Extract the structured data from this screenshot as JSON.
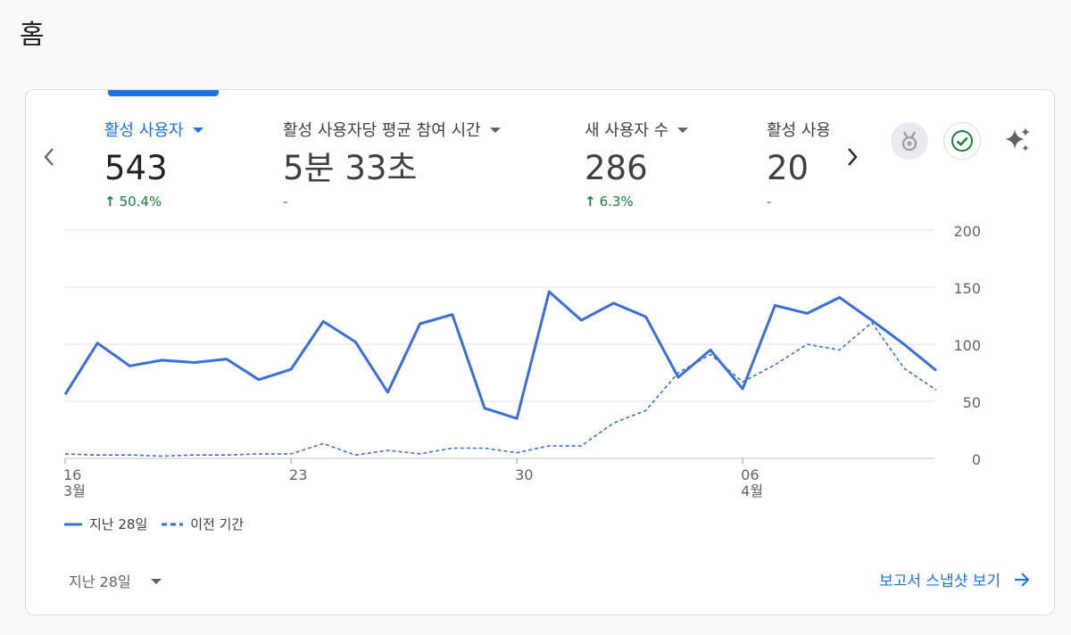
{
  "page": {
    "title": "홈"
  },
  "metrics": [
    {
      "label": "활성 사용자",
      "value": "543",
      "change": "50.4%",
      "trend": "up",
      "active": true
    },
    {
      "label": "활성 사용자당 평균 참여 시간",
      "value": "5분 33초",
      "change": "-",
      "trend": "none",
      "active": false
    },
    {
      "label": "새 사용자 수",
      "value": "286",
      "change": "6.3%",
      "trend": "up",
      "active": false
    },
    {
      "label": "활성 사용자",
      "value": "20",
      "change": "-",
      "trend": "none",
      "active": false
    }
  ],
  "icons": {
    "prev": "chevron-left-icon",
    "next": "chevron-right-icon",
    "badge": "medal-icon",
    "check": "check-circle-icon",
    "spark": "sparkle-icon"
  },
  "colors": {
    "accent": "#1a73e8",
    "line": "#3b6fd8",
    "positive": "#188038"
  },
  "chart_data": {
    "type": "line",
    "x_ticks": [
      {
        "index": 0,
        "label": "16",
        "sublabel": "3월"
      },
      {
        "index": 7,
        "label": "23",
        "sublabel": ""
      },
      {
        "index": 14,
        "label": "30",
        "sublabel": ""
      },
      {
        "index": 21,
        "label": "06",
        "sublabel": "4월"
      }
    ],
    "y_ticks": [
      0,
      50,
      100,
      150,
      200
    ],
    "ylim": [
      0,
      200
    ],
    "series": [
      {
        "name": "지난 28일",
        "style": "solid",
        "values": [
          56,
          101,
          81,
          86,
          84,
          87,
          69,
          78,
          120,
          102,
          58,
          118,
          126,
          44,
          35,
          146,
          121,
          136,
          124,
          71,
          95,
          61,
          134,
          127,
          141,
          121,
          100,
          77
        ]
      },
      {
        "name": "이전 기간",
        "style": "dashed",
        "values": [
          4,
          3,
          3,
          2,
          3,
          3,
          4,
          4,
          13,
          3,
          7,
          4,
          9,
          9,
          5,
          11,
          11,
          31,
          42,
          75,
          91,
          67,
          82,
          100,
          95,
          119,
          79,
          60
        ]
      }
    ],
    "grid": true,
    "legend": "bottom-left"
  },
  "footer": {
    "date_range": "지난 28일",
    "report_link": "보고서 스냅샷 보기"
  }
}
